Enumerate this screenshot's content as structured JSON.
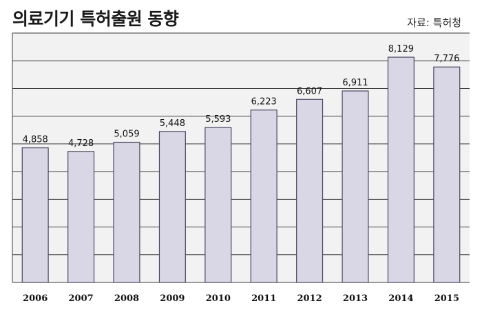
{
  "header": {
    "title": "의료기기 특허출원 동향",
    "source": "자료: 특허청"
  },
  "colors": {
    "plot_background": "#f2f2f2",
    "bar_fill": "#d9d6e6",
    "bar_stroke": "#4a4660",
    "gridline": "#3a3a3a"
  },
  "chart_data": {
    "type": "bar",
    "title": "의료기기 특허출원 동향",
    "xlabel": "",
    "ylabel": "",
    "categories": [
      "2006",
      "2007",
      "2008",
      "2009",
      "2010",
      "2011",
      "2012",
      "2013",
      "2014",
      "2015"
    ],
    "values": [
      4858,
      4728,
      5059,
      5448,
      5593,
      6223,
      6607,
      6911,
      8129,
      7776
    ],
    "value_labels": [
      "4,858",
      "4,728",
      "5,059",
      "5,448",
      "5,593",
      "6,223",
      "6,607",
      "6,911",
      "8,129",
      "7,776"
    ],
    "ylim": [
      0,
      9000
    ],
    "y_gridline_step": 1000,
    "grid": true,
    "legend": "none",
    "y_tick_labels_shown": false
  }
}
